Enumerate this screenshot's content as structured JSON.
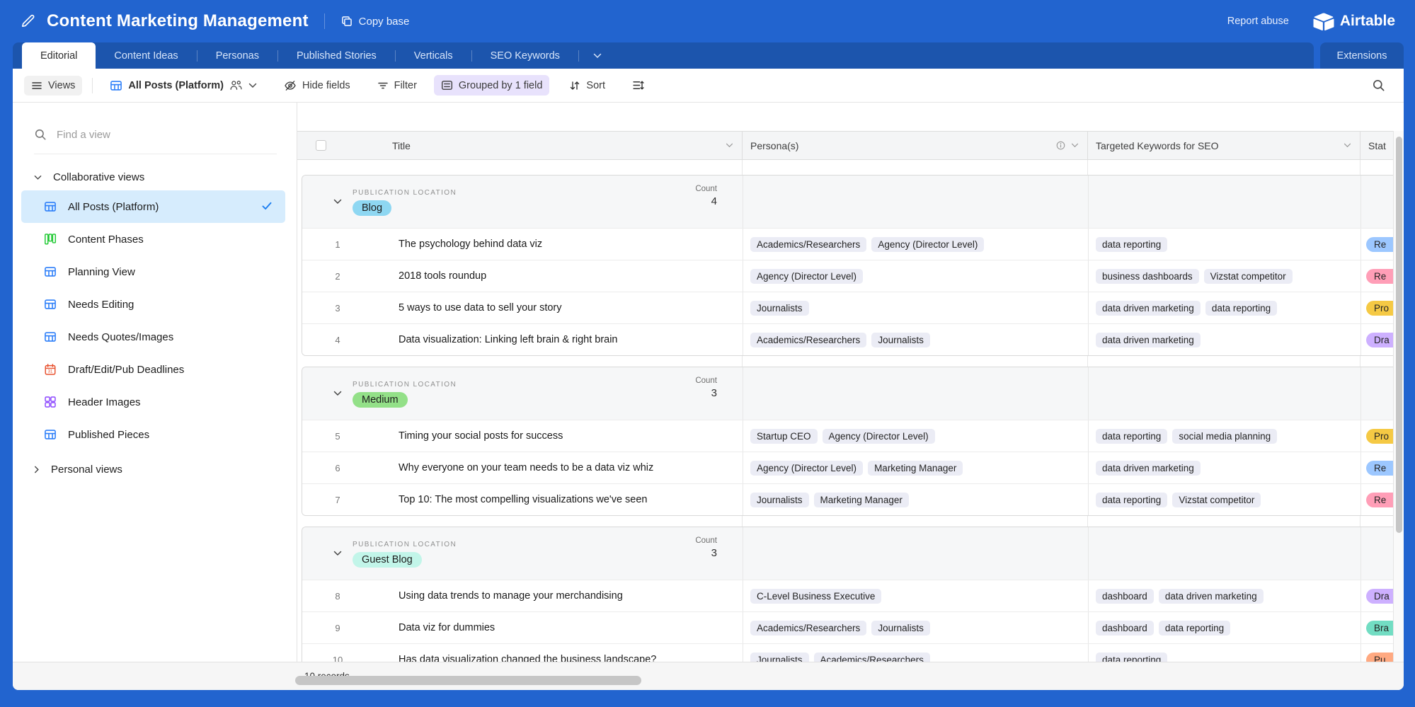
{
  "topbar": {
    "title": "Content Marketing Management",
    "copy_base": "Copy base",
    "report_abuse": "Report abuse",
    "brand": "Airtable"
  },
  "tabs": {
    "items": [
      "Editorial",
      "Content Ideas",
      "Personas",
      "Published Stories",
      "Verticals",
      "SEO Keywords"
    ],
    "active": "Editorial",
    "extensions": "Extensions"
  },
  "toolbar": {
    "views": "Views",
    "view_name": "All Posts (Platform)",
    "hide_fields": "Hide fields",
    "filter": "Filter",
    "grouped": "Grouped by 1 field",
    "sort": "Sort"
  },
  "sidebar": {
    "find_placeholder": "Find a view",
    "collaborative_label": "Collaborative views",
    "personal_label": "Personal views",
    "items": [
      {
        "label": "All Posts (Platform)",
        "icon": "grid",
        "color": "#2d7ff9",
        "selected": true
      },
      {
        "label": "Content Phases",
        "icon": "kanban",
        "color": "#20c933",
        "selected": false
      },
      {
        "label": "Planning View",
        "icon": "grid",
        "color": "#2d7ff9",
        "selected": false
      },
      {
        "label": "Needs Editing",
        "icon": "grid",
        "color": "#2d7ff9",
        "selected": false
      },
      {
        "label": "Needs Quotes/Images",
        "icon": "grid",
        "color": "#2d7ff9",
        "selected": false
      },
      {
        "label": "Draft/Edit/Pub Deadlines",
        "icon": "calendar",
        "color": "#e8512e",
        "selected": false
      },
      {
        "label": "Header Images",
        "icon": "gallery",
        "color": "#8b46ff",
        "selected": false
      },
      {
        "label": "Published Pieces",
        "icon": "grid",
        "color": "#2d7ff9",
        "selected": false
      }
    ]
  },
  "table": {
    "columns": {
      "title": "Title",
      "personas": "Persona(s)",
      "keywords": "Targeted Keywords for SEO",
      "status": "Stat"
    },
    "group_field_label": "PUBLICATION LOCATION",
    "count_label": "Count",
    "groups": [
      {
        "name": "Blog",
        "color": "#8ed7f2",
        "count": "4",
        "rows": [
          {
            "num": "1",
            "title": "The psychology behind data viz",
            "personas": [
              "Academics/Researchers",
              "Agency (Director Level)"
            ],
            "keywords": [
              "data reporting"
            ],
            "status": {
              "label": "Re",
              "color": "#9cc7ff"
            }
          },
          {
            "num": "2",
            "title": "2018 tools roundup",
            "personas": [
              "Agency (Director Level)"
            ],
            "keywords": [
              "business dashboards",
              "Vizstat competitor"
            ],
            "status": {
              "label": "Re",
              "color": "#ff9eb7"
            }
          },
          {
            "num": "3",
            "title": "5 ways to use data to sell your story",
            "personas": [
              "Journalists"
            ],
            "keywords": [
              "data driven marketing",
              "data reporting"
            ],
            "status": {
              "label": "Pro",
              "color": "#f5c944"
            }
          },
          {
            "num": "4",
            "title": "Data visualization: Linking left brain & right brain",
            "personas": [
              "Academics/Researchers",
              "Journalists"
            ],
            "keywords": [
              "data driven marketing"
            ],
            "status": {
              "label": "Dra",
              "color": "#cdb0ff"
            }
          }
        ]
      },
      {
        "name": "Medium",
        "color": "#93e088",
        "count": "3",
        "rows": [
          {
            "num": "5",
            "title": "Timing your social posts for success",
            "personas": [
              "Startup CEO",
              "Agency (Director Level)"
            ],
            "keywords": [
              "data reporting",
              "social media planning"
            ],
            "status": {
              "label": "Pro",
              "color": "#f5c944"
            }
          },
          {
            "num": "6",
            "title": "Why everyone on your team needs to be a data viz whiz",
            "personas": [
              "Agency (Director Level)",
              "Marketing Manager"
            ],
            "keywords": [
              "data driven marketing"
            ],
            "status": {
              "label": "Re",
              "color": "#9cc7ff"
            }
          },
          {
            "num": "7",
            "title": "Top 10: The most compelling visualizations we've seen",
            "personas": [
              "Journalists",
              "Marketing Manager"
            ],
            "keywords": [
              "data reporting",
              "Vizstat competitor"
            ],
            "status": {
              "label": "Re",
              "color": "#ff9eb7"
            }
          }
        ]
      },
      {
        "name": "Guest Blog",
        "color": "#c2f5e9",
        "count": "3",
        "rows": [
          {
            "num": "8",
            "title": "Using data trends to manage your merchandising",
            "personas": [
              "C-Level Business Executive"
            ],
            "keywords": [
              "dashboard",
              "data driven marketing"
            ],
            "status": {
              "label": "Dra",
              "color": "#cdb0ff"
            }
          },
          {
            "num": "9",
            "title": "Data viz for dummies",
            "personas": [
              "Academics/Researchers",
              "Journalists"
            ],
            "keywords": [
              "dashboard",
              "data reporting"
            ],
            "status": {
              "label": "Bra",
              "color": "#72ddc3"
            }
          },
          {
            "num": "10",
            "title": "Has data visualization changed the business landscape?",
            "personas": [
              "Journalists",
              "Academics/Researchers"
            ],
            "keywords": [
              "data reporting"
            ],
            "status": {
              "label": "Pu",
              "color": "#ffa981"
            }
          }
        ]
      }
    ]
  },
  "footer": {
    "records": "10 records"
  }
}
